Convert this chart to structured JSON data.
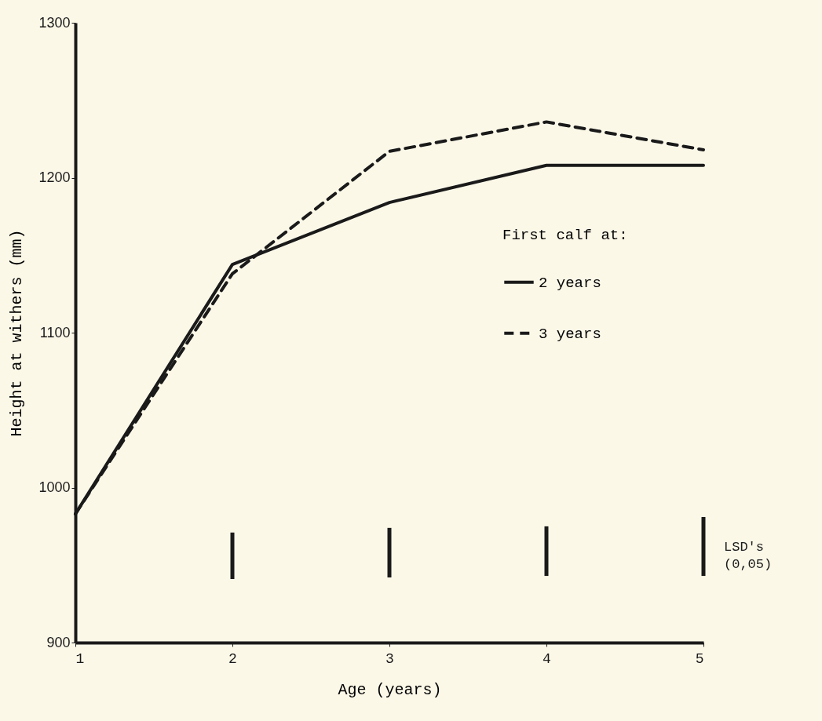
{
  "chart_data": {
    "type": "line",
    "xlabel": "Age (years)",
    "ylabel": "Height at withers (mm)",
    "legend_title": "First calf at:",
    "legend": "right",
    "x": [
      1,
      2,
      3,
      4,
      5
    ],
    "xlim": [
      1,
      5
    ],
    "xticks": [
      1,
      2,
      3,
      4,
      5
    ],
    "ylim": [
      900,
      1300
    ],
    "yticks": [
      900,
      1000,
      1100,
      1200,
      1300
    ],
    "grid": false,
    "series": [
      {
        "name": "2 years",
        "color": "#1a1a1a",
        "line_style": "solid",
        "values": [
          983,
          1144,
          1184,
          1208,
          1208
        ]
      },
      {
        "name": "3 years",
        "color": "#1a1a1a",
        "line_style": "dashed",
        "values": [
          983,
          1138,
          1217,
          1236,
          1218
        ]
      },
      {
        "name": "LSD's (0,05)",
        "type": "bar",
        "color": "#1a1a1a",
        "x": [
          2,
          3,
          4,
          5
        ],
        "base": [
          941,
          942,
          943,
          943
        ],
        "values": [
          30,
          32,
          32,
          38
        ]
      }
    ]
  }
}
